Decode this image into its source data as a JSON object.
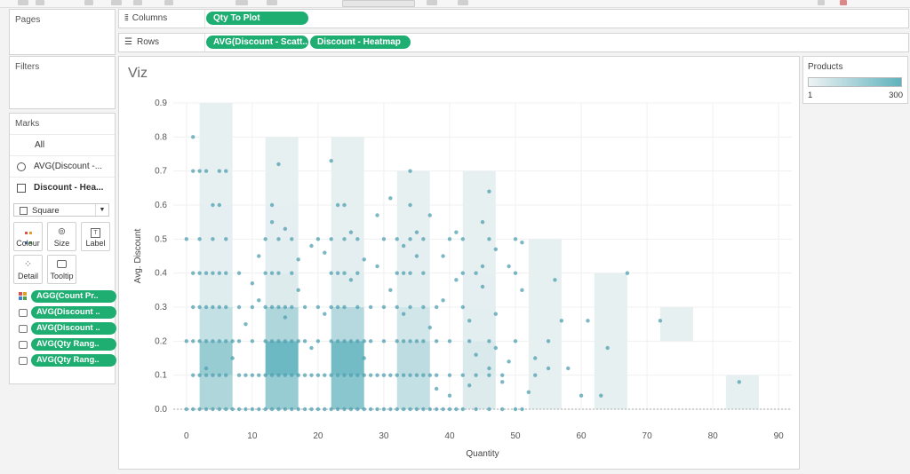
{
  "shelves": {
    "columns_label": "Columns",
    "rows_label": "Rows",
    "columns_pills": [
      "Qty To Plot"
    ],
    "rows_pills": [
      "AVG(Discount - Scatt..",
      "Discount - Heatmap"
    ]
  },
  "pages": {
    "title": "Pages"
  },
  "filters": {
    "title": "Filters"
  },
  "marks": {
    "title": "Marks",
    "all": "All",
    "layer1": "AVG(Discount -...",
    "layer2": "Discount - Hea...",
    "mark_type": "Square",
    "buttons": {
      "colour": "Colour",
      "size": "Size",
      "label": "Label",
      "detail": "Detail",
      "tooltip": "Tooltip"
    },
    "pills": [
      "AGG(Count Pr..",
      "AVG(Discount ..",
      "AVG(Discount ..",
      "AVG(Qty Rang..",
      "AVG(Qty Rang.."
    ]
  },
  "legend": {
    "title": "Products",
    "min": "1",
    "max": "300",
    "color_low": "#eef3f4",
    "color_high": "#5fb2bd"
  },
  "viz": {
    "title": "Viz"
  },
  "chart_data": {
    "type": "scatter",
    "xlabel": "Quantity",
    "ylabel": "Avg. Discount",
    "xlim": [
      -2,
      92
    ],
    "ylim": [
      0,
      0.9
    ],
    "x_ticks": [
      0,
      10,
      20,
      30,
      40,
      50,
      60,
      70,
      80,
      90
    ],
    "y_ticks": [
      "0.0",
      "0.1",
      "0.2",
      "0.3",
      "0.4",
      "0.5",
      "0.6",
      "0.7",
      "0.8",
      "0.9"
    ],
    "grid": true,
    "point_color": "#4f9fb0",
    "heatmap": {
      "bin_width": 5,
      "bin_height": 0.1,
      "cells": [
        [
          2,
          0.0,
          0.45
        ],
        [
          2,
          0.1,
          0.6
        ],
        [
          2,
          0.2,
          0.3
        ],
        [
          2,
          0.3,
          0.1
        ],
        [
          2,
          0.4,
          0.06
        ],
        [
          2,
          0.5,
          0.06
        ],
        [
          2,
          0.6,
          0.05
        ],
        [
          2,
          0.7,
          0.05
        ],
        [
          2,
          0.8,
          0.05
        ],
        [
          12,
          0.0,
          0.6
        ],
        [
          12,
          0.1,
          0.9
        ],
        [
          12,
          0.2,
          0.45
        ],
        [
          12,
          0.3,
          0.12
        ],
        [
          12,
          0.4,
          0.08
        ],
        [
          12,
          0.5,
          0.06
        ],
        [
          12,
          0.6,
          0.05
        ],
        [
          12,
          0.7,
          0.05
        ],
        [
          22,
          0.0,
          0.7
        ],
        [
          22,
          0.1,
          0.85
        ],
        [
          22,
          0.2,
          0.4
        ],
        [
          22,
          0.3,
          0.1
        ],
        [
          22,
          0.4,
          0.07
        ],
        [
          22,
          0.5,
          0.05
        ],
        [
          22,
          0.6,
          0.05
        ],
        [
          22,
          0.7,
          0.05
        ],
        [
          32,
          0.0,
          0.3
        ],
        [
          32,
          0.1,
          0.35
        ],
        [
          32,
          0.2,
          0.2
        ],
        [
          32,
          0.3,
          0.08
        ],
        [
          32,
          0.4,
          0.06
        ],
        [
          32,
          0.5,
          0.05
        ],
        [
          32,
          0.6,
          0.05
        ],
        [
          42,
          0.0,
          0.12
        ],
        [
          42,
          0.1,
          0.15
        ],
        [
          42,
          0.2,
          0.08
        ],
        [
          42,
          0.3,
          0.06
        ],
        [
          42,
          0.4,
          0.05
        ],
        [
          42,
          0.5,
          0.05
        ],
        [
          42,
          0.6,
          0.05
        ],
        [
          52,
          0.0,
          0.05
        ],
        [
          52,
          0.1,
          0.05
        ],
        [
          52,
          0.2,
          0.05
        ],
        [
          52,
          0.3,
          0.05
        ],
        [
          52,
          0.4,
          0.05
        ],
        [
          62,
          0.0,
          0.05
        ],
        [
          62,
          0.1,
          0.05
        ],
        [
          62,
          0.2,
          0.05
        ],
        [
          62,
          0.3,
          0.05
        ],
        [
          72,
          0.2,
          0.05
        ],
        [
          82,
          0.0,
          0.05
        ]
      ]
    },
    "points": [
      [
        0,
        0.0
      ],
      [
        1,
        0.0
      ],
      [
        2,
        0.0
      ],
      [
        3,
        0.0
      ],
      [
        4,
        0.0
      ],
      [
        5,
        0.0
      ],
      [
        6,
        0.0
      ],
      [
        7,
        0.0
      ],
      [
        8,
        0.0
      ],
      [
        9,
        0.0
      ],
      [
        10,
        0.0
      ],
      [
        11,
        0.0
      ],
      [
        12,
        0.0
      ],
      [
        13,
        0.0
      ],
      [
        14,
        0.0
      ],
      [
        15,
        0.0
      ],
      [
        16,
        0.0
      ],
      [
        17,
        0.0
      ],
      [
        18,
        0.0
      ],
      [
        19,
        0.0
      ],
      [
        20,
        0.0
      ],
      [
        21,
        0.0
      ],
      [
        22,
        0.0
      ],
      [
        23,
        0.0
      ],
      [
        24,
        0.0
      ],
      [
        25,
        0.0
      ],
      [
        26,
        0.0
      ],
      [
        27,
        0.0
      ],
      [
        28,
        0.0
      ],
      [
        29,
        0.0
      ],
      [
        30,
        0.0
      ],
      [
        31,
        0.0
      ],
      [
        32,
        0.0
      ],
      [
        33,
        0.0
      ],
      [
        34,
        0.0
      ],
      [
        35,
        0.0
      ],
      [
        36,
        0.0
      ],
      [
        37,
        0.0
      ],
      [
        38,
        0.0
      ],
      [
        39,
        0.0
      ],
      [
        40,
        0.0
      ],
      [
        41,
        0.0
      ],
      [
        42,
        0.0
      ],
      [
        44,
        0.0
      ],
      [
        46,
        0.0
      ],
      [
        48,
        0.0
      ],
      [
        50,
        0.0
      ],
      [
        51,
        0.0
      ],
      [
        1,
        0.1
      ],
      [
        2,
        0.1
      ],
      [
        3,
        0.1
      ],
      [
        4,
        0.1
      ],
      [
        5,
        0.1
      ],
      [
        6,
        0.1
      ],
      [
        8,
        0.1
      ],
      [
        9,
        0.1
      ],
      [
        10,
        0.1
      ],
      [
        11,
        0.1
      ],
      [
        12,
        0.1
      ],
      [
        13,
        0.1
      ],
      [
        14,
        0.1
      ],
      [
        15,
        0.1
      ],
      [
        16,
        0.1
      ],
      [
        17,
        0.1
      ],
      [
        18,
        0.1
      ],
      [
        19,
        0.1
      ],
      [
        20,
        0.1
      ],
      [
        21,
        0.1
      ],
      [
        22,
        0.1
      ],
      [
        23,
        0.1
      ],
      [
        24,
        0.1
      ],
      [
        25,
        0.1
      ],
      [
        26,
        0.1
      ],
      [
        27,
        0.1
      ],
      [
        28,
        0.1
      ],
      [
        29,
        0.1
      ],
      [
        30,
        0.1
      ],
      [
        31,
        0.1
      ],
      [
        32,
        0.1
      ],
      [
        33,
        0.1
      ],
      [
        34,
        0.1
      ],
      [
        35,
        0.1
      ],
      [
        36,
        0.1
      ],
      [
        37,
        0.1
      ],
      [
        38,
        0.1
      ],
      [
        40,
        0.1
      ],
      [
        42,
        0.1
      ],
      [
        44,
        0.1
      ],
      [
        46,
        0.1
      ],
      [
        48,
        0.1
      ],
      [
        0,
        0.2
      ],
      [
        1,
        0.2
      ],
      [
        2,
        0.2
      ],
      [
        3,
        0.2
      ],
      [
        4,
        0.2
      ],
      [
        5,
        0.2
      ],
      [
        6,
        0.2
      ],
      [
        7,
        0.2
      ],
      [
        8,
        0.2
      ],
      [
        10,
        0.2
      ],
      [
        12,
        0.2
      ],
      [
        13,
        0.2
      ],
      [
        14,
        0.2
      ],
      [
        15,
        0.2
      ],
      [
        16,
        0.2
      ],
      [
        17,
        0.2
      ],
      [
        18,
        0.2
      ],
      [
        20,
        0.2
      ],
      [
        22,
        0.2
      ],
      [
        23,
        0.2
      ],
      [
        24,
        0.2
      ],
      [
        25,
        0.2
      ],
      [
        26,
        0.2
      ],
      [
        27,
        0.2
      ],
      [
        28,
        0.2
      ],
      [
        30,
        0.2
      ],
      [
        32,
        0.2
      ],
      [
        33,
        0.2
      ],
      [
        34,
        0.2
      ],
      [
        35,
        0.2
      ],
      [
        36,
        0.2
      ],
      [
        38,
        0.2
      ],
      [
        40,
        0.2
      ],
      [
        43,
        0.2
      ],
      [
        46,
        0.2
      ],
      [
        50,
        0.2
      ],
      [
        55,
        0.2
      ],
      [
        1,
        0.3
      ],
      [
        2,
        0.3
      ],
      [
        3,
        0.3
      ],
      [
        4,
        0.3
      ],
      [
        5,
        0.3
      ],
      [
        6,
        0.3
      ],
      [
        8,
        0.3
      ],
      [
        10,
        0.3
      ],
      [
        12,
        0.3
      ],
      [
        13,
        0.3
      ],
      [
        14,
        0.3
      ],
      [
        15,
        0.3
      ],
      [
        16,
        0.3
      ],
      [
        18,
        0.3
      ],
      [
        20,
        0.3
      ],
      [
        22,
        0.3
      ],
      [
        23,
        0.3
      ],
      [
        24,
        0.3
      ],
      [
        26,
        0.3
      ],
      [
        28,
        0.3
      ],
      [
        30,
        0.3
      ],
      [
        32,
        0.3
      ],
      [
        34,
        0.3
      ],
      [
        36,
        0.3
      ],
      [
        38,
        0.3
      ],
      [
        42,
        0.3
      ],
      [
        1,
        0.4
      ],
      [
        2,
        0.4
      ],
      [
        3,
        0.4
      ],
      [
        4,
        0.4
      ],
      [
        5,
        0.4
      ],
      [
        6,
        0.4
      ],
      [
        12,
        0.4
      ],
      [
        13,
        0.4
      ],
      [
        14,
        0.4
      ],
      [
        16,
        0.4
      ],
      [
        22,
        0.4
      ],
      [
        23,
        0.4
      ],
      [
        24,
        0.4
      ],
      [
        26,
        0.4
      ],
      [
        32,
        0.4
      ],
      [
        33,
        0.4
      ],
      [
        34,
        0.4
      ],
      [
        36,
        0.4
      ],
      [
        42,
        0.4
      ],
      [
        44,
        0.4
      ],
      [
        50,
        0.4
      ],
      [
        56,
        0.38
      ],
      [
        67,
        0.4
      ],
      [
        0,
        0.5
      ],
      [
        2,
        0.5
      ],
      [
        4,
        0.5
      ],
      [
        6,
        0.5
      ],
      [
        12,
        0.5
      ],
      [
        14,
        0.5
      ],
      [
        16,
        0.5
      ],
      [
        20,
        0.5
      ],
      [
        22,
        0.5
      ],
      [
        24,
        0.5
      ],
      [
        26,
        0.5
      ],
      [
        30,
        0.5
      ],
      [
        32,
        0.5
      ],
      [
        34,
        0.5
      ],
      [
        36,
        0.5
      ],
      [
        40,
        0.5
      ],
      [
        42,
        0.5
      ],
      [
        46,
        0.5
      ],
      [
        50,
        0.5
      ],
      [
        51,
        0.49
      ],
      [
        4,
        0.6
      ],
      [
        5,
        0.6
      ],
      [
        13,
        0.6
      ],
      [
        23,
        0.6
      ],
      [
        24,
        0.6
      ],
      [
        31,
        0.62
      ],
      [
        34,
        0.6
      ],
      [
        46,
        0.64
      ],
      [
        1,
        0.7
      ],
      [
        2,
        0.7
      ],
      [
        3,
        0.7
      ],
      [
        5,
        0.7
      ],
      [
        6,
        0.7
      ],
      [
        14,
        0.72
      ],
      [
        22,
        0.73
      ],
      [
        34,
        0.7
      ],
      [
        1,
        0.8
      ],
      [
        3,
        0.12
      ],
      [
        7,
        0.15
      ],
      [
        9,
        0.25
      ],
      [
        11,
        0.32
      ],
      [
        15,
        0.27
      ],
      [
        17,
        0.35
      ],
      [
        19,
        0.18
      ],
      [
        21,
        0.28
      ],
      [
        25,
        0.38
      ],
      [
        27,
        0.15
      ],
      [
        29,
        0.42
      ],
      [
        31,
        0.35
      ],
      [
        33,
        0.28
      ],
      [
        35,
        0.45
      ],
      [
        37,
        0.24
      ],
      [
        39,
        0.32
      ],
      [
        41,
        0.38
      ],
      [
        43,
        0.26
      ],
      [
        45,
        0.42
      ],
      [
        47,
        0.18
      ],
      [
        49,
        0.14
      ],
      [
        51,
        0.35
      ],
      [
        53,
        0.1
      ],
      [
        53,
        0.15
      ],
      [
        55,
        0.12
      ],
      [
        57,
        0.26
      ],
      [
        58,
        0.12
      ],
      [
        60,
        0.04
      ],
      [
        61,
        0.26
      ],
      [
        63,
        0.04
      ],
      [
        64,
        0.18
      ],
      [
        72,
        0.26
      ],
      [
        84,
        0.08
      ],
      [
        8,
        0.4
      ],
      [
        10,
        0.37
      ],
      [
        11,
        0.45
      ],
      [
        13,
        0.55
      ],
      [
        15,
        0.53
      ],
      [
        17,
        0.44
      ],
      [
        19,
        0.48
      ],
      [
        21,
        0.46
      ],
      [
        25,
        0.52
      ],
      [
        27,
        0.44
      ],
      [
        29,
        0.57
      ],
      [
        33,
        0.48
      ],
      [
        35,
        0.52
      ],
      [
        37,
        0.57
      ],
      [
        39,
        0.45
      ],
      [
        41,
        0.52
      ],
      [
        45,
        0.55
      ],
      [
        47,
        0.47
      ],
      [
        49,
        0.42
      ],
      [
        45,
        0.36
      ],
      [
        47,
        0.28
      ],
      [
        44,
        0.16
      ],
      [
        46,
        0.12
      ],
      [
        48,
        0.08
      ],
      [
        38,
        0.06
      ],
      [
        40,
        0.04
      ],
      [
        43,
        0.07
      ],
      [
        52,
        0.05
      ]
    ]
  }
}
